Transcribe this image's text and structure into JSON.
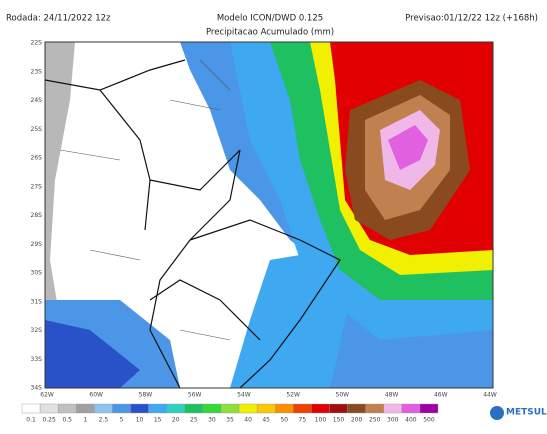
{
  "header": {
    "run": "Rodada: 24/11/2022 12z",
    "model": "Modelo ICON/DWD 0.125",
    "forecast": "Previsao:01/12/22 12z (+168h)",
    "subtitle": "Precipitacao Acumulado (mm)"
  },
  "map": {
    "lat_labels": [
      "22S",
      "23S",
      "24S",
      "25S",
      "26S",
      "27S",
      "28S",
      "29S",
      "30S",
      "31S",
      "32S",
      "33S",
      "34S"
    ],
    "lon_labels": [
      "62W",
      "60W",
      "58W",
      "56W",
      "54W",
      "52W",
      "50W",
      "48W",
      "46W",
      "44W"
    ]
  },
  "legend": {
    "levels": [
      0.1,
      0.25,
      0.5,
      1,
      2.5,
      5,
      10,
      15,
      20,
      25,
      30,
      35,
      40,
      45,
      50,
      75,
      100,
      150,
      200,
      250,
      300,
      400,
      500
    ],
    "colors": [
      "#ffffff",
      "#e0e0e0",
      "#c0c0c0",
      "#a0a0a0",
      "#8fc3ef",
      "#4c96e8",
      "#2a52c8",
      "#3ea8f0",
      "#2fd0c0",
      "#1fc060",
      "#39d63a",
      "#8be03a",
      "#f0f000",
      "#f8c800",
      "#f89000",
      "#f04000",
      "#e00000",
      "#a01010",
      "#8a4a20",
      "#c08050",
      "#f0b8e8",
      "#e060e0",
      "#a000a0"
    ]
  },
  "logo": {
    "name": "METSUL"
  }
}
